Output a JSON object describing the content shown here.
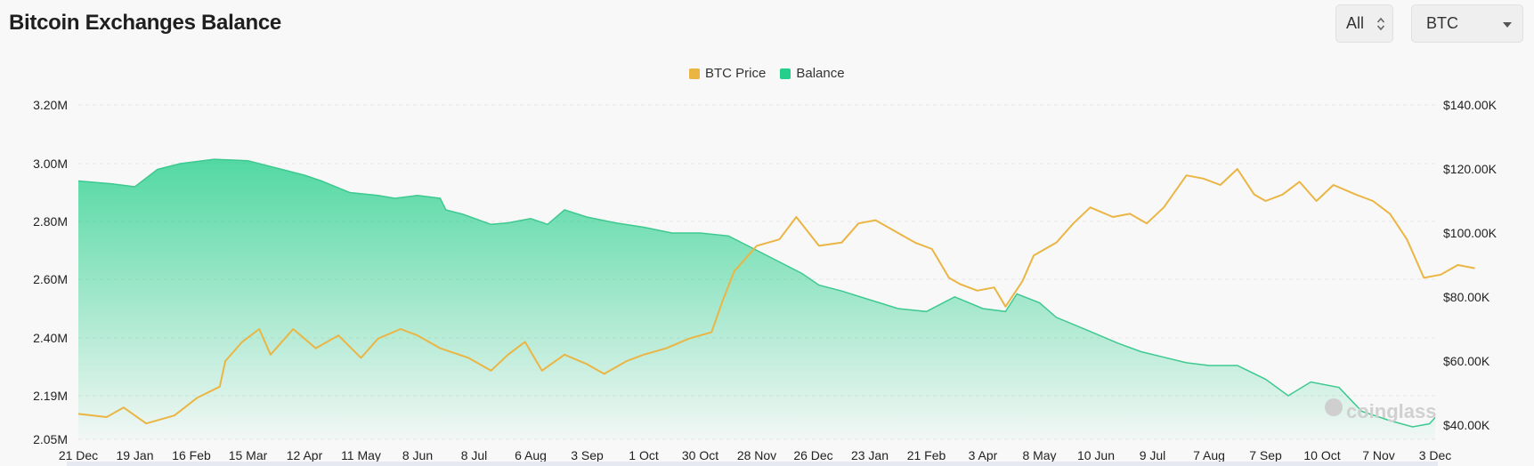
{
  "header": {
    "title": "Bitcoin Exchanges Balance",
    "range_select": "All",
    "coin_select": "BTC"
  },
  "colors": {
    "price": "#ebb544",
    "balance": "#23cf8a",
    "balance_line": "#3ec990",
    "grid": "#e6e6e6",
    "axis_text": "#222222"
  },
  "watermark": {
    "text": "coinglass",
    "icon": "coinglass-logo-icon"
  },
  "chart_data": {
    "type": "line",
    "legend": [
      "BTC Price",
      "Balance"
    ],
    "legend_position": "top-center",
    "grid": true,
    "x_labels": [
      "21 Dec",
      "19 Jan",
      "16 Feb",
      "15 Mar",
      "12 Apr",
      "11 May",
      "8 Jun",
      "8 Jul",
      "6 Aug",
      "3 Sep",
      "1 Oct",
      "30 Oct",
      "28 Nov",
      "26 Dec",
      "23 Jan",
      "21 Feb",
      "3 Apr",
      "8 May",
      "10 Jun",
      "9 Jul",
      "7 Aug",
      "7 Sep",
      "10 Oct",
      "7 Nov",
      "3 Dec"
    ],
    "y_left": {
      "ticks": [
        2050000,
        2190000,
        2400000,
        2600000,
        2800000,
        3000000,
        3200000
      ],
      "tick_labels": [
        "2.05M",
        "2.19M",
        "2.40M",
        "2.60M",
        "2.80M",
        "3.00M",
        "3.20M"
      ]
    },
    "y_right": {
      "range": [
        40000,
        140000
      ],
      "ticks": [
        40000,
        60000,
        80000,
        100000,
        120000,
        140000
      ],
      "tick_labels": [
        "$40.00K",
        "$60.00K",
        "$80.00K",
        "$100.00K",
        "$120.00K",
        "$140.00K"
      ]
    },
    "series": [
      {
        "name": "Balance",
        "type": "area",
        "axis": "left",
        "points": [
          [
            0,
            2940000
          ],
          [
            0.6,
            2930000
          ],
          [
            1,
            2920000
          ],
          [
            1.4,
            2980000
          ],
          [
            1.8,
            3000000
          ],
          [
            2.4,
            3015000
          ],
          [
            3,
            3010000
          ],
          [
            3.6,
            2980000
          ],
          [
            4,
            2960000
          ],
          [
            4.3,
            2940000
          ],
          [
            4.8,
            2900000
          ],
          [
            5.3,
            2890000
          ],
          [
            5.6,
            2880000
          ],
          [
            6,
            2890000
          ],
          [
            6.4,
            2880000
          ],
          [
            6.5,
            2840000
          ],
          [
            6.8,
            2825000
          ],
          [
            7.3,
            2790000
          ],
          [
            7.6,
            2795000
          ],
          [
            8,
            2810000
          ],
          [
            8.3,
            2790000
          ],
          [
            8.6,
            2840000
          ],
          [
            9,
            2815000
          ],
          [
            9.5,
            2795000
          ],
          [
            10,
            2780000
          ],
          [
            10.5,
            2760000
          ],
          [
            11,
            2760000
          ],
          [
            11.5,
            2750000
          ],
          [
            12,
            2700000
          ],
          [
            12.4,
            2660000
          ],
          [
            12.8,
            2620000
          ],
          [
            13.1,
            2580000
          ],
          [
            13.5,
            2560000
          ],
          [
            14,
            2530000
          ],
          [
            14.5,
            2500000
          ],
          [
            15,
            2490000
          ],
          [
            15.5,
            2540000
          ],
          [
            16,
            2500000
          ],
          [
            16.4,
            2490000
          ],
          [
            16.6,
            2550000
          ],
          [
            17,
            2520000
          ],
          [
            17.3,
            2470000
          ],
          [
            17.8,
            2430000
          ],
          [
            18.4,
            2380000
          ],
          [
            18.8,
            2350000
          ],
          [
            19.2,
            2330000
          ],
          [
            19.6,
            2310000
          ],
          [
            20,
            2300000
          ],
          [
            20.5,
            2300000
          ],
          [
            21,
            2250000
          ],
          [
            21.4,
            2190000
          ],
          [
            21.8,
            2240000
          ],
          [
            22.3,
            2220000
          ],
          [
            22.7,
            2140000
          ],
          [
            23.2,
            2110000
          ],
          [
            23.6,
            2090000
          ],
          [
            23.9,
            2100000
          ],
          [
            24,
            2120000
          ]
        ]
      },
      {
        "name": "BTC Price",
        "type": "line",
        "axis": "right",
        "points": [
          [
            0,
            43500
          ],
          [
            0.5,
            42500
          ],
          [
            0.8,
            45500
          ],
          [
            1.2,
            40500
          ],
          [
            1.7,
            43000
          ],
          [
            2.1,
            48500
          ],
          [
            2.5,
            52000
          ],
          [
            2.6,
            60000
          ],
          [
            2.9,
            66000
          ],
          [
            3.2,
            70000
          ],
          [
            3.4,
            62000
          ],
          [
            3.8,
            70000
          ],
          [
            4.2,
            64000
          ],
          [
            4.6,
            68000
          ],
          [
            5,
            61000
          ],
          [
            5.3,
            67000
          ],
          [
            5.7,
            70000
          ],
          [
            6,
            68000
          ],
          [
            6.4,
            64000
          ],
          [
            6.9,
            61000
          ],
          [
            7.3,
            57000
          ],
          [
            7.6,
            62000
          ],
          [
            7.9,
            66000
          ],
          [
            8.2,
            57000
          ],
          [
            8.6,
            62000
          ],
          [
            9,
            59000
          ],
          [
            9.3,
            56000
          ],
          [
            9.7,
            60000
          ],
          [
            10,
            62000
          ],
          [
            10.4,
            64000
          ],
          [
            10.8,
            67000
          ],
          [
            11.2,
            69000
          ],
          [
            11.4,
            79000
          ],
          [
            11.6,
            88000
          ],
          [
            11.8,
            92000
          ],
          [
            12,
            96000
          ],
          [
            12.4,
            98000
          ],
          [
            12.7,
            105000
          ],
          [
            13.1,
            96000
          ],
          [
            13.5,
            97000
          ],
          [
            13.8,
            103000
          ],
          [
            14.1,
            104000
          ],
          [
            14.4,
            101000
          ],
          [
            14.8,
            97000
          ],
          [
            15.1,
            95000
          ],
          [
            15.4,
            86000
          ],
          [
            15.6,
            84000
          ],
          [
            15.9,
            82000
          ],
          [
            16.2,
            83000
          ],
          [
            16.4,
            77000
          ],
          [
            16.7,
            85000
          ],
          [
            16.9,
            93000
          ],
          [
            17.3,
            97000
          ],
          [
            17.6,
            103000
          ],
          [
            17.9,
            108000
          ],
          [
            18.3,
            105000
          ],
          [
            18.6,
            106000
          ],
          [
            18.9,
            103000
          ],
          [
            19.2,
            108000
          ],
          [
            19.6,
            118000
          ],
          [
            19.9,
            117000
          ],
          [
            20.2,
            115000
          ],
          [
            20.5,
            120000
          ],
          [
            20.8,
            112000
          ],
          [
            21,
            110000
          ],
          [
            21.3,
            112000
          ],
          [
            21.6,
            116000
          ],
          [
            21.9,
            110000
          ],
          [
            22.2,
            115000
          ],
          [
            22.6,
            112000
          ],
          [
            22.9,
            110000
          ],
          [
            23.2,
            106000
          ],
          [
            23.5,
            98000
          ],
          [
            23.8,
            86000
          ],
          [
            24.1,
            87000
          ],
          [
            24.4,
            90000
          ],
          [
            24.7,
            89000
          ]
        ]
      }
    ]
  }
}
